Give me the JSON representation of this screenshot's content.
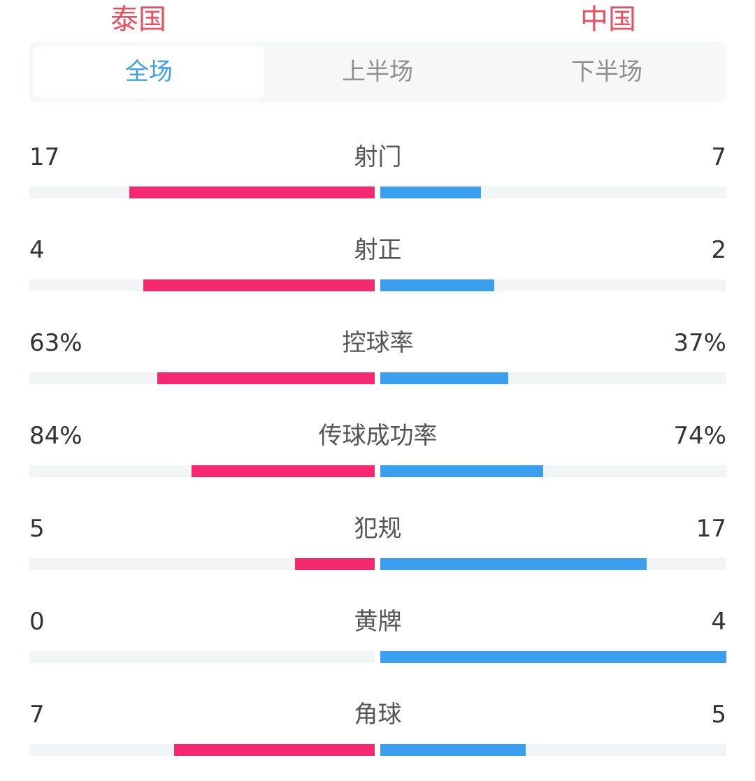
{
  "teams": {
    "home": "泰国",
    "away": "中国"
  },
  "colors": {
    "home_bar": "#f6286f",
    "away_bar": "#3a9fee",
    "team_name": "#e94f5f",
    "tab_active": "#3aa0e6"
  },
  "tabs": [
    {
      "label": "全场",
      "active": true
    },
    {
      "label": "上半场",
      "active": false
    },
    {
      "label": "下半场",
      "active": false
    }
  ],
  "stats": [
    {
      "label": "射门",
      "home": "17",
      "away": "7",
      "home_fraction": 0.71,
      "away_fraction": 0.29
    },
    {
      "label": "射正",
      "home": "4",
      "away": "2",
      "home_fraction": 0.67,
      "away_fraction": 0.33
    },
    {
      "label": "控球率",
      "home": "63%",
      "away": "37%",
      "home_fraction": 0.63,
      "away_fraction": 0.37
    },
    {
      "label": "传球成功率",
      "home": "84%",
      "away": "74%",
      "home_fraction": 0.53,
      "away_fraction": 0.47
    },
    {
      "label": "犯规",
      "home": "5",
      "away": "17",
      "home_fraction": 0.23,
      "away_fraction": 0.77
    },
    {
      "label": "黄牌",
      "home": "0",
      "away": "4",
      "home_fraction": 0.0,
      "away_fraction": 1.0
    },
    {
      "label": "角球",
      "home": "7",
      "away": "5",
      "home_fraction": 0.58,
      "away_fraction": 0.42
    }
  ]
}
